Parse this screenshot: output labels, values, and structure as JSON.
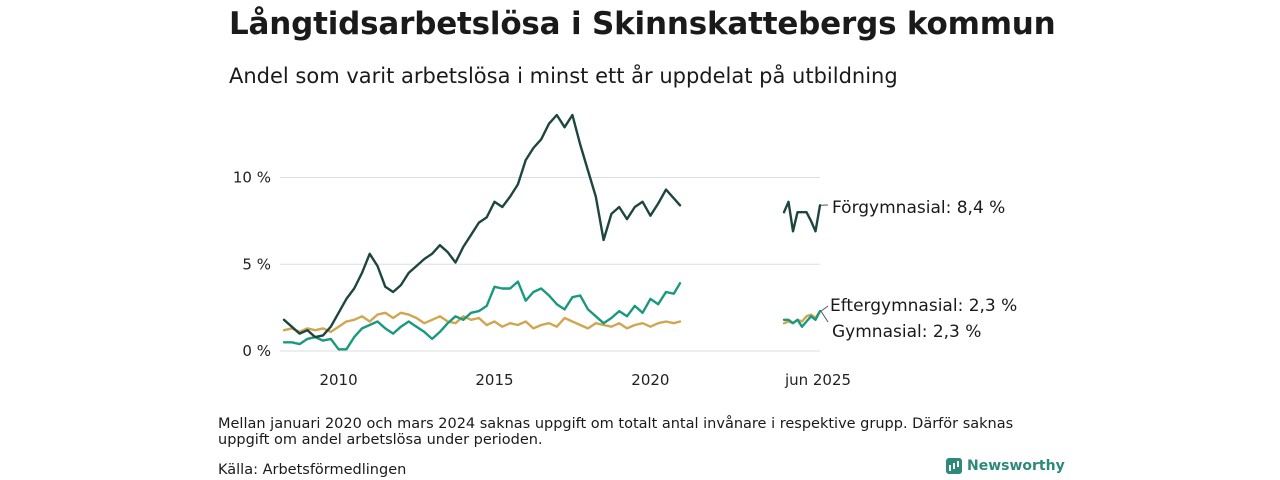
{
  "title": "Långtidsarbetslösa i Skinnskattebergs kommun",
  "subtitle": "Andel som varit arbetslösa i minst ett år uppdelat på utbildning",
  "note": "Mellan januari 2020 och mars 2024 saknas uppgift om totalt antal invånare i respektive grupp. Därför saknas uppgift om andel arbetslösa under perioden.",
  "source": "Källa: Arbetsförmedlingen",
  "brand": "Newsworthy",
  "chart_data": {
    "type": "line",
    "title": "Långtidsarbetslösa i Skinnskattebergs kommun",
    "subtitle": "Andel som varit arbetslösa i minst ett år uppdelat på utbildning",
    "ylim": [
      0,
      14
    ],
    "y_ticks": [
      0,
      5,
      10
    ],
    "y_tick_labels": [
      "0 %",
      "5 %",
      "10 %"
    ],
    "x_ticks": [
      2010,
      2015,
      2020
    ],
    "x_tick_labels": [
      "2010",
      "2015",
      "2020"
    ],
    "latest_label": "jun 2025",
    "grid": "horizontal",
    "series": [
      {
        "name": "Förgymnasial",
        "color": "#1e4640",
        "end_label": "Förgymnasial: 8,4 %",
        "segment1": {
          "x": [
            2008.25,
            2008.5,
            2008.75,
            2009,
            2009.25,
            2009.5,
            2009.75,
            2010,
            2010.25,
            2010.5,
            2010.75,
            2011,
            2011.25,
            2011.5,
            2011.75,
            2012,
            2012.25,
            2012.5,
            2012.75,
            2013,
            2013.25,
            2013.5,
            2013.75,
            2014,
            2014.25,
            2014.5,
            2014.75,
            2015,
            2015.25,
            2015.5,
            2015.75,
            2016,
            2016.25,
            2016.5,
            2016.75,
            2017,
            2017.25,
            2017.5,
            2017.75,
            2018,
            2018.25,
            2018.5,
            2018.75,
            2019,
            2019.25,
            2019.5,
            2019.75,
            2020,
            2020.25,
            2020.5,
            2020.75,
            2020.95
          ],
          "y": [
            1.8,
            1.4,
            1.0,
            1.2,
            0.8,
            0.9,
            1.4,
            2.2,
            3.0,
            3.6,
            4.5,
            5.6,
            4.9,
            3.7,
            3.4,
            3.8,
            4.5,
            4.9,
            5.3,
            5.6,
            6.1,
            5.7,
            5.1,
            6.0,
            6.7,
            7.4,
            7.7,
            8.6,
            8.3,
            8.9,
            9.6,
            11.0,
            11.7,
            12.2,
            13.1,
            13.6,
            12.9,
            13.6,
            11.9,
            10.4,
            8.9,
            6.4,
            7.9,
            8.3,
            7.6,
            8.3,
            8.6,
            7.8,
            8.5,
            9.3,
            8.8,
            8.4
          ]
        },
        "segment2": {
          "x": [
            2024.25,
            2024.4,
            2024.55,
            2024.7,
            2024.85,
            2025,
            2025.15,
            2025.3,
            2025.45
          ],
          "y": [
            8.0,
            8.6,
            6.9,
            8.0,
            8.0,
            8.0,
            7.5,
            6.9,
            8.4
          ]
        }
      },
      {
        "name": "Eftergymnasial",
        "color": "#1a9980",
        "end_label": "Eftergymnasial: 2,3 %",
        "segment1": {
          "x": [
            2008.25,
            2008.5,
            2008.75,
            2009,
            2009.25,
            2009.5,
            2009.75,
            2010,
            2010.25,
            2010.5,
            2010.75,
            2011,
            2011.25,
            2011.5,
            2011.75,
            2012,
            2012.25,
            2012.5,
            2012.75,
            2013,
            2013.25,
            2013.5,
            2013.75,
            2014,
            2014.25,
            2014.5,
            2014.75,
            2015,
            2015.25,
            2015.5,
            2015.75,
            2016,
            2016.25,
            2016.5,
            2016.75,
            2017,
            2017.25,
            2017.5,
            2017.75,
            2018,
            2018.25,
            2018.5,
            2018.75,
            2019,
            2019.25,
            2019.5,
            2019.75,
            2020,
            2020.25,
            2020.5,
            2020.75,
            2020.95
          ],
          "y": [
            0.5,
            0.5,
            0.4,
            0.7,
            0.8,
            0.6,
            0.7,
            0.1,
            0.1,
            0.8,
            1.3,
            1.5,
            1.7,
            1.3,
            1.0,
            1.4,
            1.7,
            1.4,
            1.1,
            0.7,
            1.1,
            1.6,
            2.0,
            1.8,
            2.2,
            2.3,
            2.6,
            3.7,
            3.6,
            3.6,
            4.0,
            2.9,
            3.4,
            3.6,
            3.2,
            2.7,
            2.4,
            3.1,
            3.2,
            2.4,
            2.0,
            1.6,
            1.9,
            2.3,
            2.0,
            2.6,
            2.2,
            3.0,
            2.7,
            3.4,
            3.3,
            3.9
          ]
        },
        "segment2": {
          "x": [
            2024.25,
            2024.4,
            2024.55,
            2024.7,
            2024.85,
            2025,
            2025.15,
            2025.3,
            2025.45
          ],
          "y": [
            1.8,
            1.8,
            1.6,
            1.8,
            1.4,
            1.7,
            2.0,
            1.8,
            2.3
          ]
        }
      },
      {
        "name": "Gymnasial",
        "color": "#d0a650",
        "end_label": "Gymnasial: 2,3 %",
        "segment1": {
          "x": [
            2008.25,
            2008.5,
            2008.75,
            2009,
            2009.25,
            2009.5,
            2009.75,
            2010,
            2010.25,
            2010.5,
            2010.75,
            2011,
            2011.25,
            2011.5,
            2011.75,
            2012,
            2012.25,
            2012.5,
            2012.75,
            2013,
            2013.25,
            2013.5,
            2013.75,
            2014,
            2014.25,
            2014.5,
            2014.75,
            2015,
            2015.25,
            2015.5,
            2015.75,
            2016,
            2016.25,
            2016.5,
            2016.75,
            2017,
            2017.25,
            2017.5,
            2017.75,
            2018,
            2018.25,
            2018.5,
            2018.75,
            2019,
            2019.25,
            2019.5,
            2019.75,
            2020,
            2020.25,
            2020.5,
            2020.75,
            2020.95
          ],
          "y": [
            1.2,
            1.3,
            1.1,
            1.3,
            1.2,
            1.3,
            1.1,
            1.4,
            1.7,
            1.8,
            2.0,
            1.7,
            2.1,
            2.2,
            1.9,
            2.2,
            2.1,
            1.9,
            1.6,
            1.8,
            2.0,
            1.7,
            1.6,
            2.0,
            1.8,
            1.9,
            1.5,
            1.7,
            1.4,
            1.6,
            1.5,
            1.7,
            1.3,
            1.5,
            1.6,
            1.4,
            1.9,
            1.7,
            1.5,
            1.3,
            1.6,
            1.5,
            1.4,
            1.6,
            1.3,
            1.5,
            1.6,
            1.4,
            1.6,
            1.7,
            1.6,
            1.7
          ]
        },
        "segment2": {
          "x": [
            2024.25,
            2024.4,
            2024.55,
            2024.7,
            2024.85,
            2025,
            2025.15,
            2025.3,
            2025.45
          ],
          "y": [
            1.6,
            1.7,
            1.6,
            1.8,
            1.7,
            2.0,
            2.1,
            1.9,
            2.3
          ]
        }
      }
    ]
  }
}
